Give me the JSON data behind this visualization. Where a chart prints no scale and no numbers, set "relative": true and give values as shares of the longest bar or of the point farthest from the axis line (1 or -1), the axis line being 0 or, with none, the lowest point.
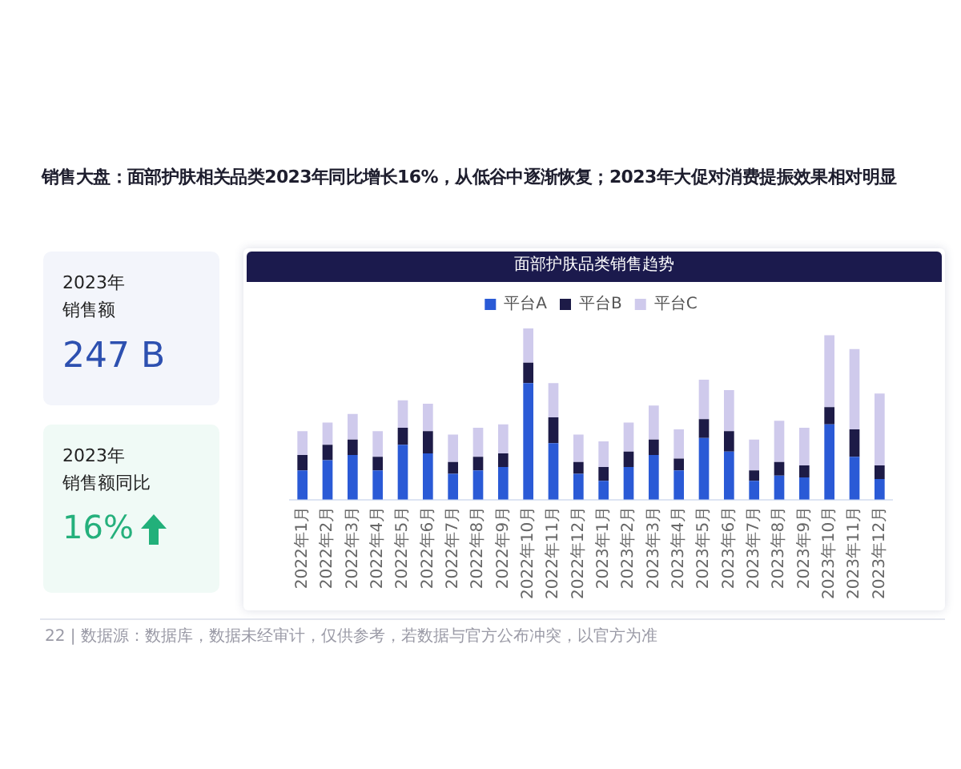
{
  "chart_data": [
    {
      "type": "other",
      "title": "2023年",
      "subtitle": "销售额",
      "annotations": [
        "247 B"
      ]
    },
    {
      "type": "other",
      "title": "2023年",
      "subtitle": "销售额同比",
      "annotations": [
        "16%"
      ]
    },
    {
      "type": "bar",
      "title": "面部护肤品类销售趋势",
      "annotations": [
        "销售大盘：面部护肤相关品类2023年同比增长16%，从低谷中逐渐恢复；2023年大促对消费提振效果相对明显",
        "22 | 数据源：数据库，数据未经审计，仅供参考，若数据与官方公布冲突，以官方为准"
      ],
      "categories": [
        "2022年1月",
        "2022年2月",
        "2022年3月",
        "2022年4月",
        "2022年5月",
        "2022年6月",
        "2022年7月",
        "2022年8月",
        "2022年9月",
        "2022年10月",
        "2022年11月",
        "2022年12月",
        "2023年1月",
        "2023年2月",
        "2023年3月",
        "2023年4月",
        "2023年5月",
        "2023年6月",
        "2023年7月",
        "2023年8月",
        "2023年9月",
        "2023年10月",
        "2023年11月",
        "2023年12月"
      ],
      "series": [
        {
          "name": "平台A",
          "color": "#2a5ad6",
          "values": [
            0.17,
            0.23,
            0.26,
            0.17,
            0.32,
            0.27,
            0.15,
            0.17,
            0.19,
            0.68,
            0.33,
            0.15,
            0.11,
            0.19,
            0.26,
            0.17,
            0.36,
            0.28,
            0.11,
            0.14,
            0.13,
            0.44,
            0.25,
            0.12
          ]
        },
        {
          "name": "平台B",
          "color": "#1d1b47",
          "values": [
            0.09,
            0.09,
            0.09,
            0.08,
            0.1,
            0.13,
            0.07,
            0.08,
            0.08,
            0.12,
            0.15,
            0.07,
            0.08,
            0.09,
            0.09,
            0.07,
            0.11,
            0.12,
            0.06,
            0.08,
            0.07,
            0.1,
            0.16,
            0.08
          ]
        },
        {
          "name": "平台C",
          "color": "#cfcaec",
          "values": [
            0.14,
            0.13,
            0.15,
            0.15,
            0.16,
            0.16,
            0.16,
            0.17,
            0.17,
            0.2,
            0.2,
            0.16,
            0.15,
            0.17,
            0.2,
            0.17,
            0.23,
            0.24,
            0.18,
            0.24,
            0.22,
            0.42,
            0.47,
            0.42
          ]
        }
      ],
      "stacked": true,
      "relative": true,
      "legend": "top",
      "grid": false
    }
  ]
}
